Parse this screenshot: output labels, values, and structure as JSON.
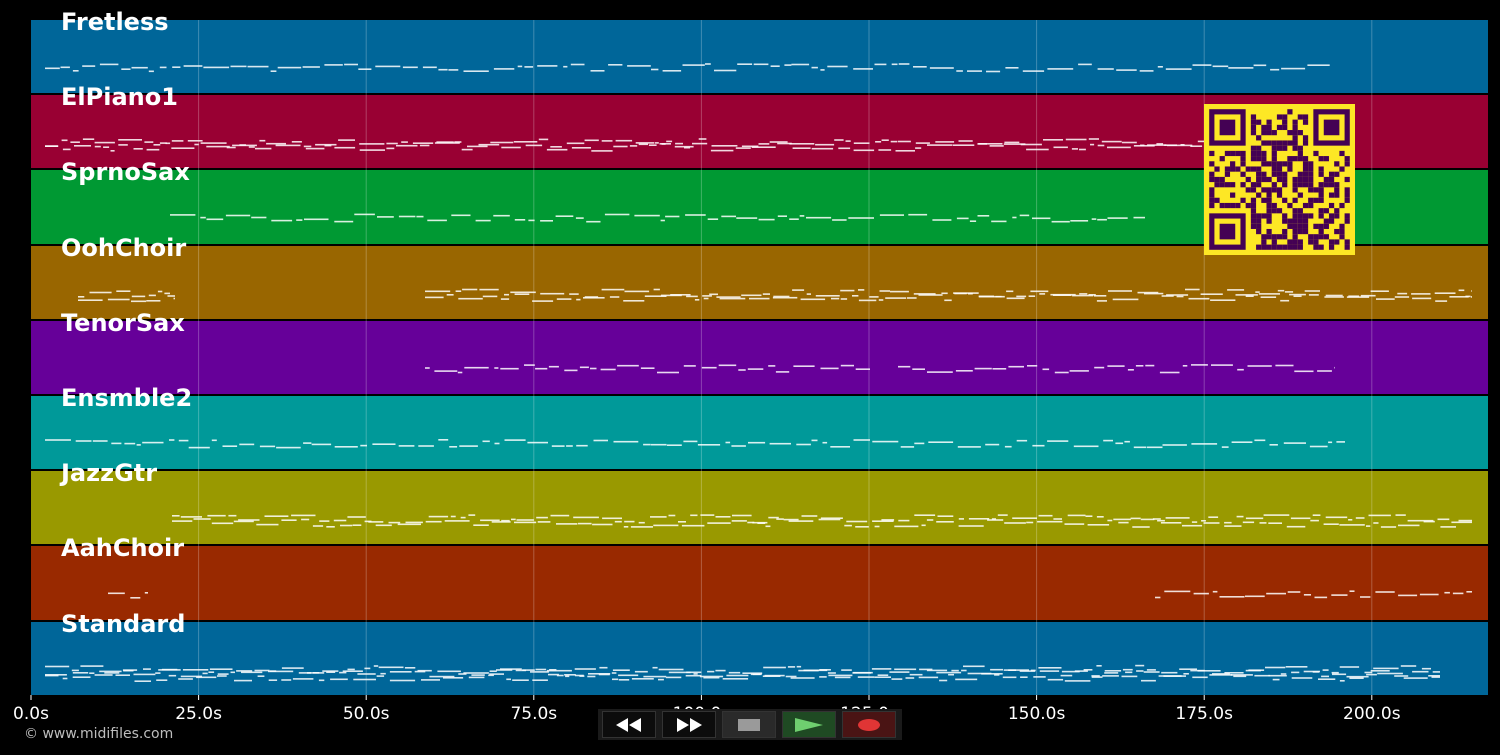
{
  "tracks": [
    {
      "name": "Fretless",
      "color": "#006699"
    },
    {
      "name": "ElPiano1",
      "color": "#990033"
    },
    {
      "name": "SprnoSax",
      "color": "#009933"
    },
    {
      "name": "OohChoir",
      "color": "#996600"
    },
    {
      "name": "TenorSax",
      "color": "#660099"
    },
    {
      "name": "Ensmble2",
      "color": "#009999"
    },
    {
      "name": "JazzGtr",
      "color": "#999900"
    },
    {
      "name": "AahChoir",
      "color": "#992900"
    },
    {
      "name": "Standard",
      "color": "#006699"
    }
  ],
  "timeline": {
    "ticks": [
      "0.0s",
      "25.0s",
      "50.0s",
      "75.0s",
      "100.0s",
      "125.0s",
      "150.0s",
      "175.0s",
      "200.0s"
    ]
  },
  "copyright": "© www.midifiles.com",
  "controls": {
    "rewind": "rewind-icon",
    "fast_forward": "fast-forward-icon",
    "stop": "stop-icon",
    "play": "play-icon",
    "record": "record-icon"
  },
  "qr_colors": {
    "bg": "#fde725",
    "fg": "#440154"
  }
}
